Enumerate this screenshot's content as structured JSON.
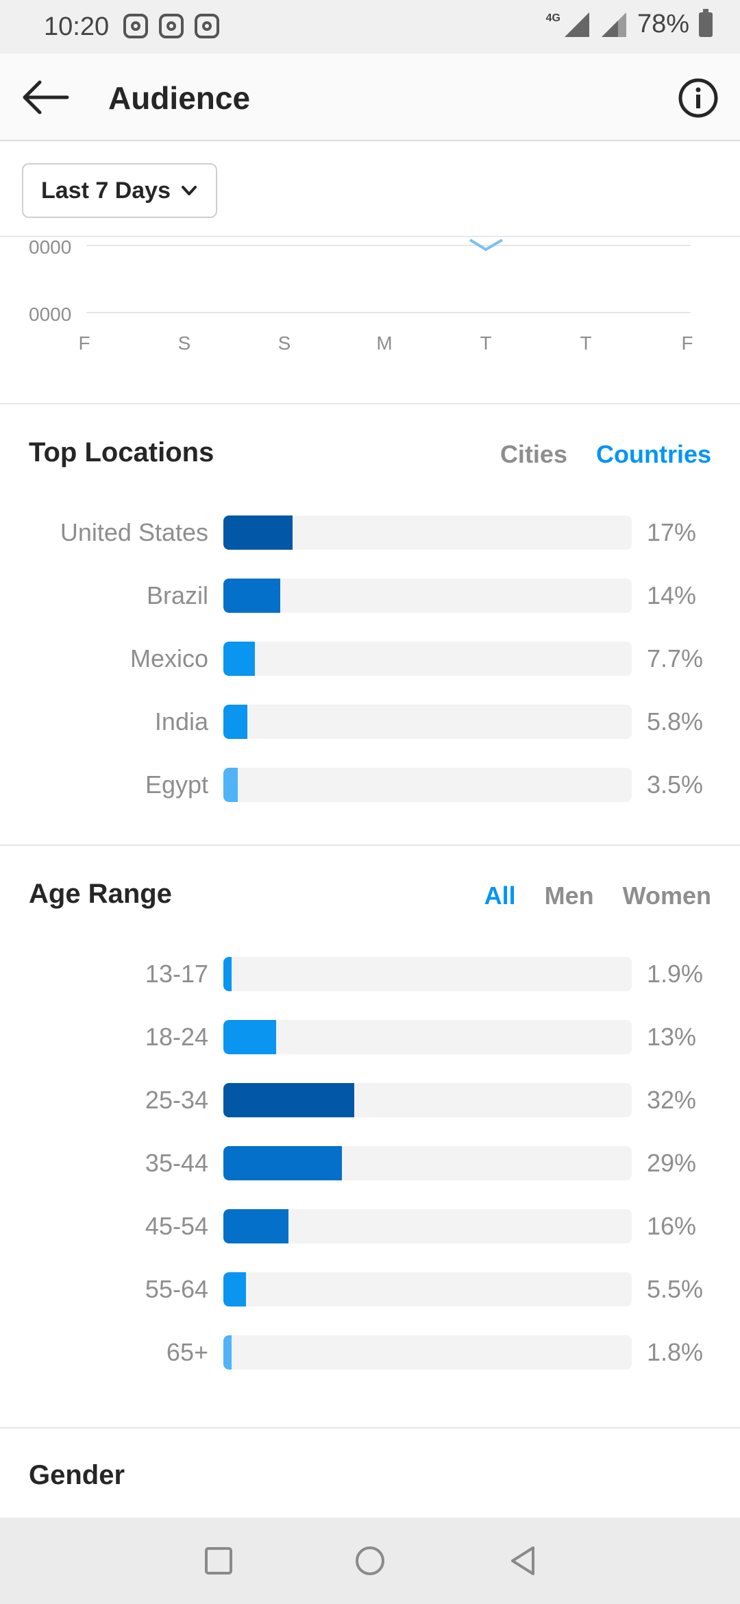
{
  "status_bar": {
    "time": "10:20",
    "network": "4G",
    "battery": "78%"
  },
  "header": {
    "title": "Audience"
  },
  "filter": {
    "period": "Last 7 Days"
  },
  "chart": {
    "y_ticks": [
      "0000",
      "0000"
    ],
    "x_ticks": [
      "F",
      "S",
      "S",
      "M",
      "T",
      "T",
      "F"
    ]
  },
  "top_locations": {
    "title": "Top Locations",
    "tabs": [
      {
        "label": "Cities",
        "active": false
      },
      {
        "label": "Countries",
        "active": true
      }
    ],
    "rows": [
      {
        "label": "United States",
        "value_text": "17%",
        "value": 17,
        "color": "#0257a6"
      },
      {
        "label": "Brazil",
        "value_text": "14%",
        "value": 14,
        "color": "#0470c9"
      },
      {
        "label": "Mexico",
        "value_text": "7.7%",
        "value": 7.7,
        "color": "#0a95f0"
      },
      {
        "label": "India",
        "value_text": "5.8%",
        "value": 5.8,
        "color": "#0a95f0"
      },
      {
        "label": "Egypt",
        "value_text": "3.5%",
        "value": 3.5,
        "color": "#4fb3f6"
      }
    ]
  },
  "age_range": {
    "title": "Age Range",
    "tabs": [
      {
        "label": "All",
        "active": true
      },
      {
        "label": "Men",
        "active": false
      },
      {
        "label": "Women",
        "active": false
      }
    ],
    "rows": [
      {
        "label": "13-17",
        "value_text": "1.9%",
        "value": 1.9,
        "color": "#0a95f0"
      },
      {
        "label": "18-24",
        "value_text": "13%",
        "value": 13,
        "color": "#0a95f0"
      },
      {
        "label": "25-34",
        "value_text": "32%",
        "value": 32,
        "color": "#0257a6"
      },
      {
        "label": "35-44",
        "value_text": "29%",
        "value": 29,
        "color": "#0470c9"
      },
      {
        "label": "45-54",
        "value_text": "16%",
        "value": 16,
        "color": "#0470c9"
      },
      {
        "label": "55-64",
        "value_text": "5.5%",
        "value": 5.5,
        "color": "#0a95f0"
      },
      {
        "label": "65+",
        "value_text": "1.8%",
        "value": 1.8,
        "color": "#4fb3f6"
      }
    ]
  },
  "gender": {
    "title": "Gender"
  },
  "icons": {
    "back": "arrow-left-icon",
    "info": "info-circle-icon",
    "dropdown": "chevron-down-icon"
  }
}
